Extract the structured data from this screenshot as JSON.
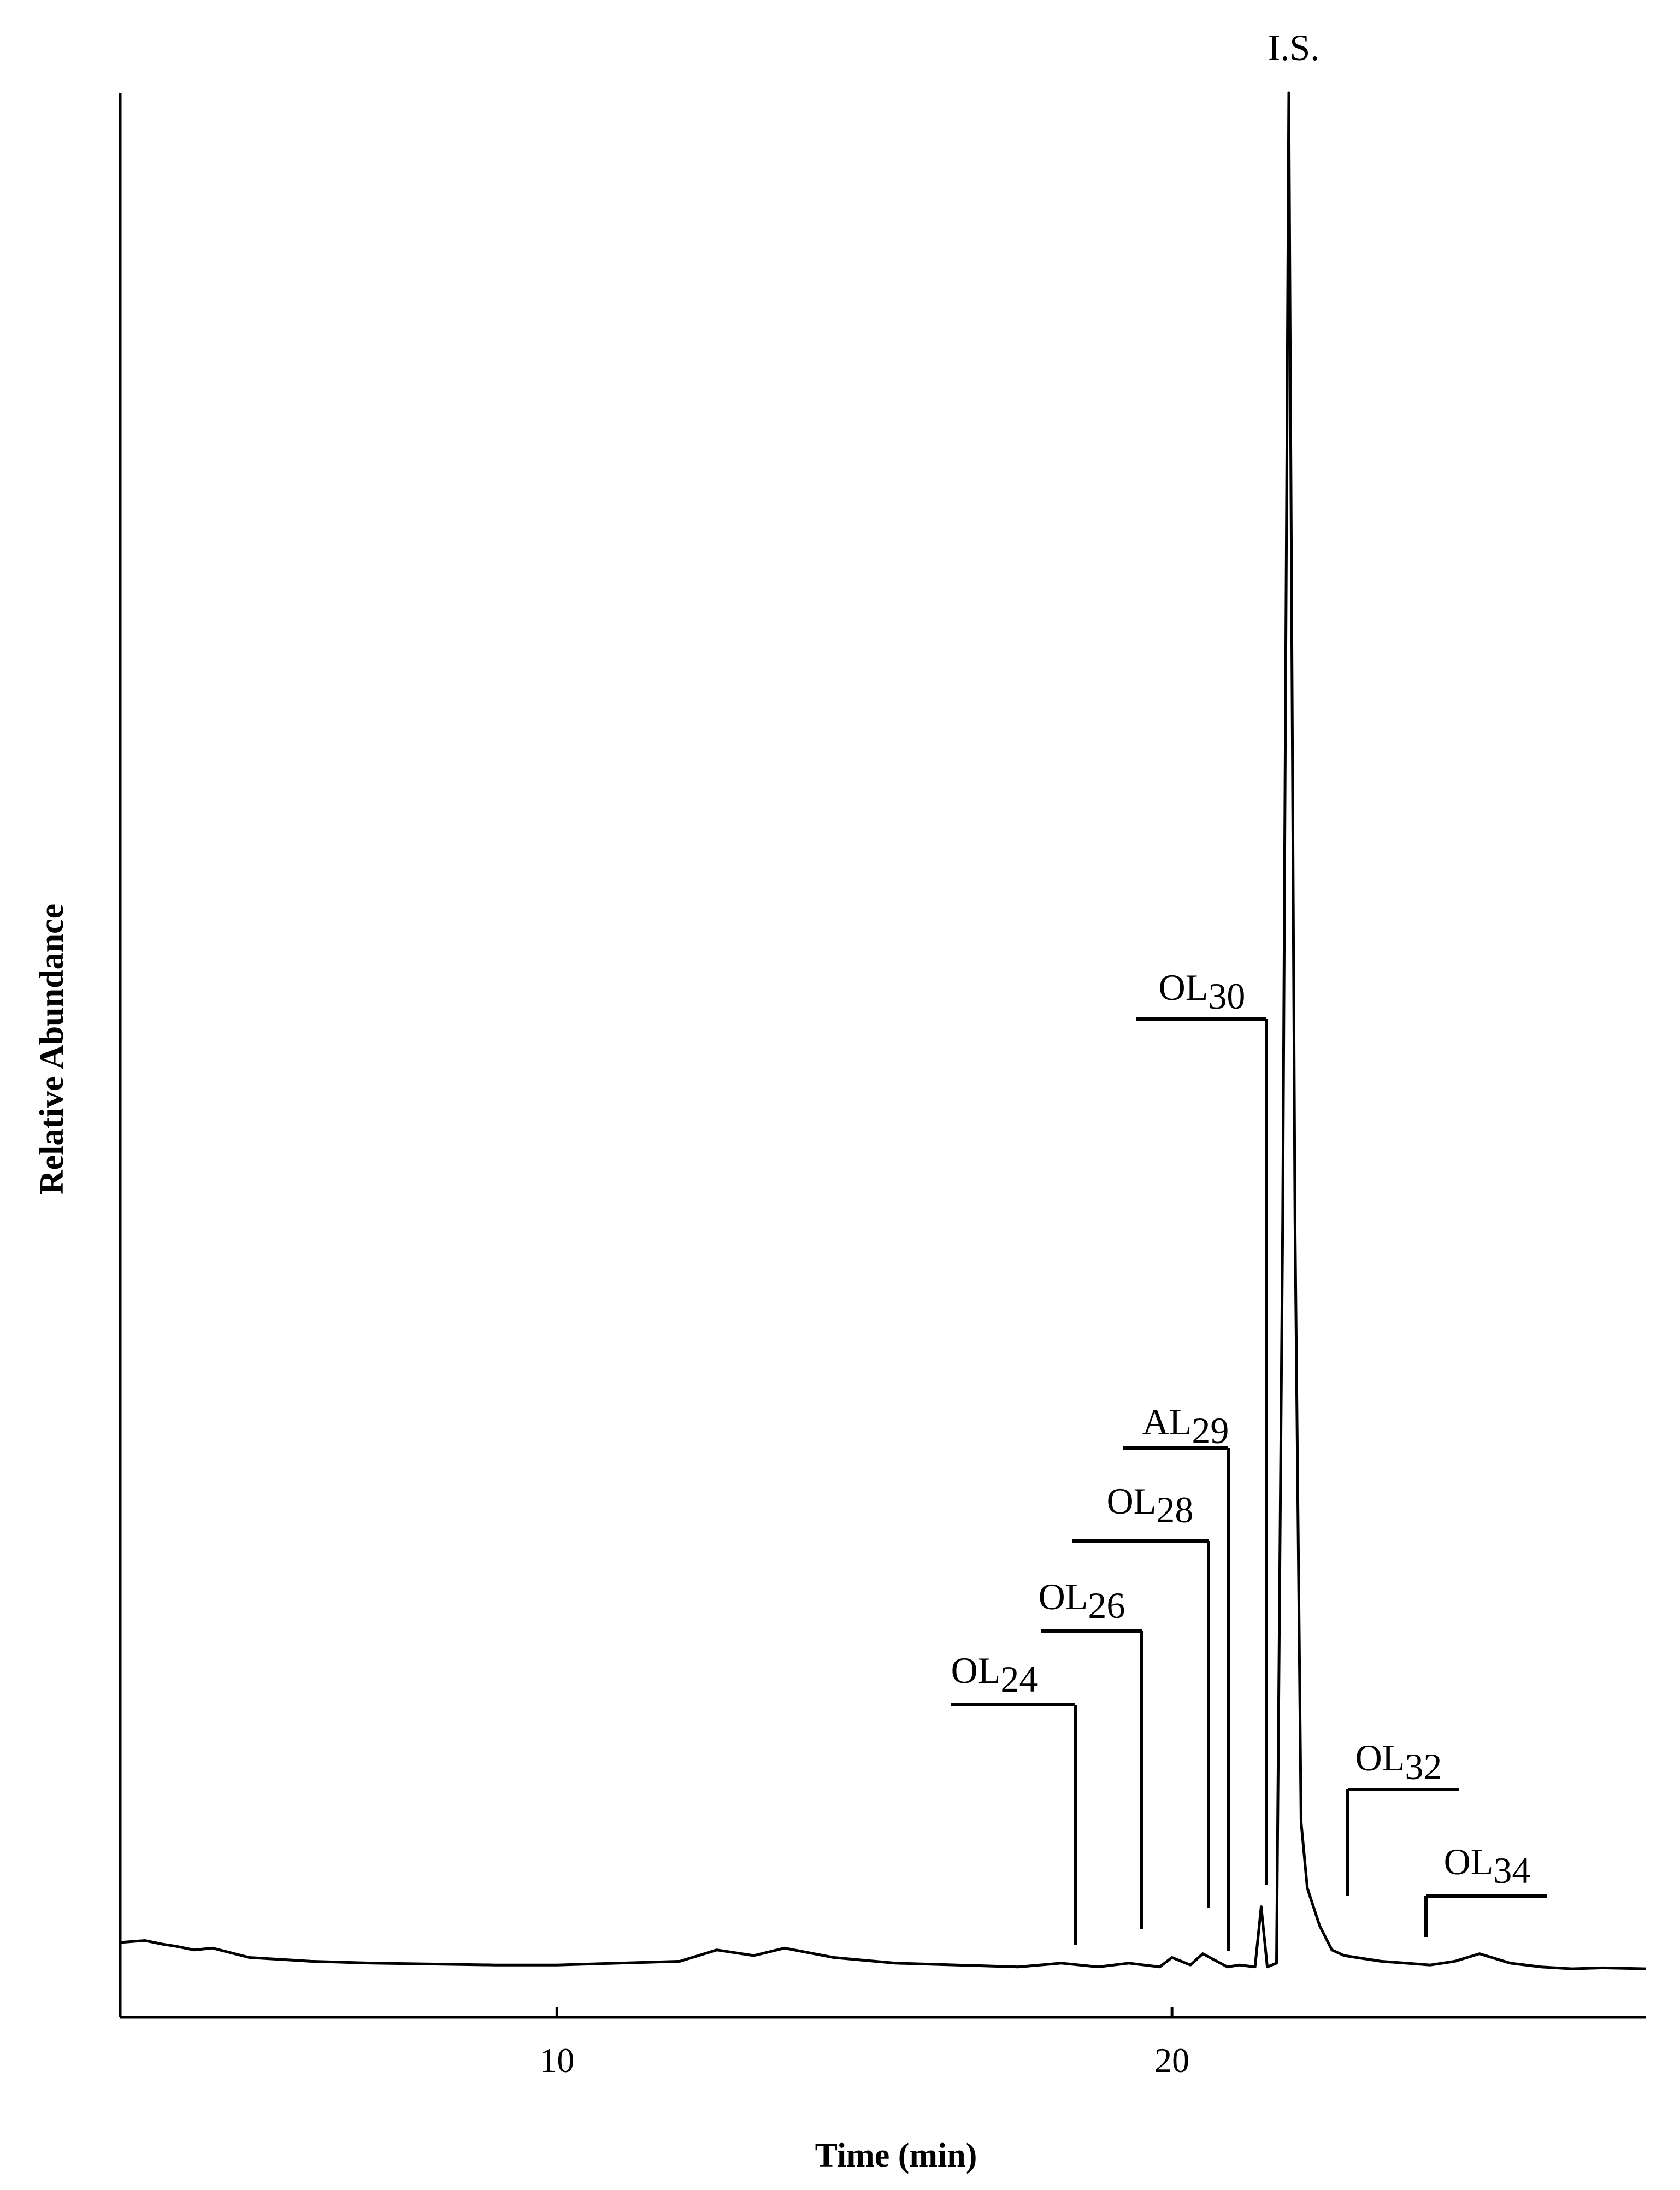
{
  "chart_data": {
    "type": "line",
    "title": "",
    "xlabel": "Time (min)",
    "ylabel": "Relative Abundance",
    "xlim": [
      2.9,
      27.7
    ],
    "ylim": [
      0,
      100
    ],
    "x_ticks": [
      10,
      20
    ],
    "x_tick_labels": [
      "10",
      "20"
    ],
    "grid": false,
    "series": [
      {
        "x": [
          2.9,
          3.3,
          3.6,
          3.8,
          4.1,
          4.4,
          5.0,
          6.0,
          7.0,
          8.0,
          9.0,
          10.0,
          11.0,
          12.0,
          12.6,
          13.2,
          13.7,
          14.5,
          15.5,
          16.5,
          17.5,
          18.2,
          18.8,
          19.3,
          19.8,
          20.0,
          20.3,
          20.5,
          20.9,
          21.1,
          21.35,
          21.45,
          21.55,
          21.7,
          21.8,
          21.9,
          22.0,
          22.1,
          22.2,
          22.4,
          22.6,
          22.8,
          23.0,
          23.4,
          23.8,
          24.2,
          24.6,
          25.0,
          25.5,
          26.0,
          26.5,
          27.0,
          27.7
        ],
        "y": [
          1.6,
          1.7,
          1.5,
          1.4,
          1.2,
          1.3,
          0.8,
          0.6,
          0.5,
          0.45,
          0.4,
          0.4,
          0.5,
          0.6,
          1.2,
          0.9,
          1.3,
          0.8,
          0.5,
          0.4,
          0.3,
          0.5,
          0.3,
          0.5,
          0.3,
          0.8,
          0.4,
          1.0,
          0.3,
          0.4,
          0.3,
          3.5,
          0.3,
          0.5,
          40.0,
          100.0,
          40.0,
          8.0,
          4.5,
          2.5,
          1.2,
          0.9,
          0.8,
          0.6,
          0.5,
          0.4,
          0.6,
          1.0,
          0.5,
          0.3,
          0.2,
          0.25,
          0.2
        ]
      }
    ],
    "peak_labels": [
      {
        "name": "I.S.",
        "main": "I.S.",
        "sub": "",
        "x": 21.8
      },
      {
        "name": "OL30",
        "main": "OL",
        "sub": "30",
        "x": 21.35
      },
      {
        "name": "AL29",
        "main": "AL",
        "sub": "29",
        "x": 20.65
      },
      {
        "name": "OL28",
        "main": "OL",
        "sub": "28",
        "x": 20.3
      },
      {
        "name": "OL26",
        "main": "OL",
        "sub": "26",
        "x": 19.25
      },
      {
        "name": "OL24",
        "main": "OL",
        "sub": "24",
        "x": 18.2
      },
      {
        "name": "OL32",
        "main": "OL",
        "sub": "32",
        "x": 22.6
      },
      {
        "name": "OL34",
        "main": "OL",
        "sub": "34",
        "x": 23.9
      }
    ]
  }
}
